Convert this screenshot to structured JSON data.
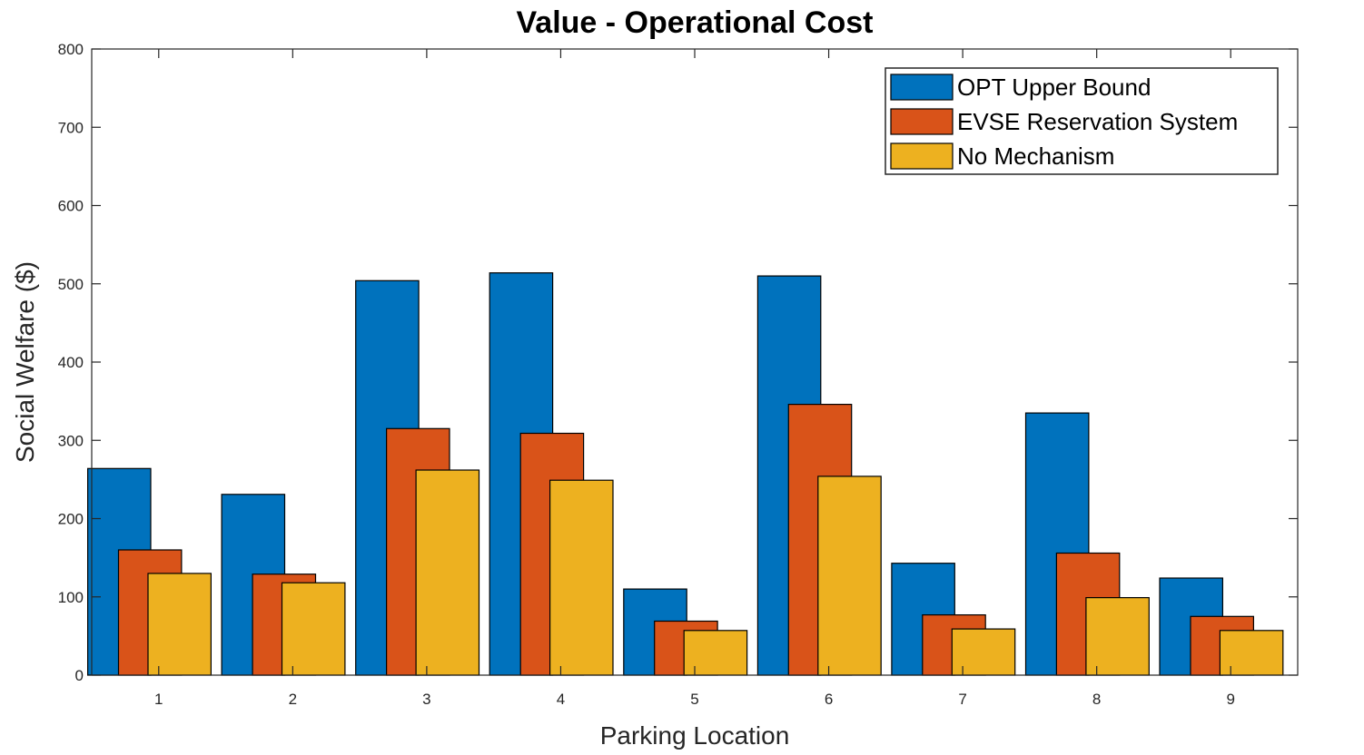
{
  "chart_data": {
    "type": "bar",
    "title": "Value - Operational Cost",
    "xlabel": "Parking Location",
    "ylabel": "Social Welfare ($)",
    "ylim": [
      0,
      800
    ],
    "yticks": [
      0,
      100,
      200,
      300,
      400,
      500,
      600,
      700,
      800
    ],
    "categories": [
      "1",
      "2",
      "3",
      "4",
      "5",
      "6",
      "7",
      "8",
      "9"
    ],
    "legend_position": "top-right",
    "grid": false,
    "series": [
      {
        "name": "OPT Upper Bound",
        "color": "#0072BD",
        "values": [
          264,
          231,
          504,
          514,
          110,
          510,
          143,
          335,
          124
        ]
      },
      {
        "name": "EVSE Reservation System",
        "color": "#D95319",
        "values": [
          160,
          129,
          315,
          309,
          69,
          346,
          77,
          156,
          75
        ]
      },
      {
        "name": "No Mechanism",
        "color": "#EDB120",
        "values": [
          130,
          118,
          262,
          249,
          57,
          254,
          59,
          99,
          57
        ]
      }
    ]
  }
}
